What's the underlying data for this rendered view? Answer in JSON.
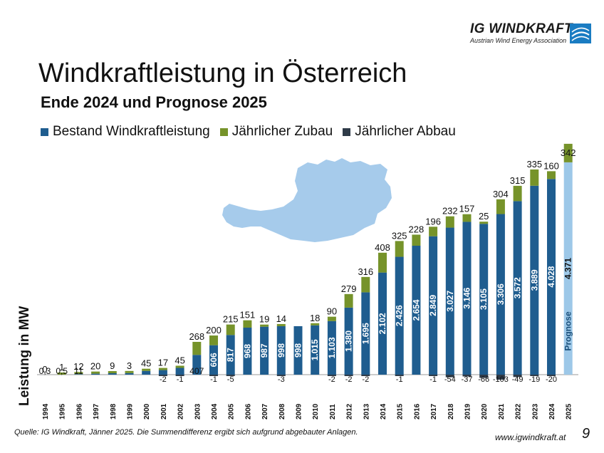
{
  "logo": {
    "title": "IG WINDKRAFT",
    "subtitle": "Austrian Wind Energy Association"
  },
  "title": "Windkraftleistung in Österreich",
  "subtitle": "Ende 2024 und Prognose 2025",
  "source": "Quelle: IG Windkraft, Jänner 2025. Die Summendifferenz ergibt sich aufgrund abgebauter Anlagen.",
  "website": "www.igwindkraft.at",
  "page_number": "9",
  "colors": {
    "bestand": "#1f5d8f",
    "zubau": "#76932a",
    "abbau": "#2f3b48",
    "prognose": "#9dc8e8",
    "map": "#a6cbeb"
  },
  "chart_data": {
    "type": "bar",
    "stacked": true,
    "title": "",
    "xlabel": "",
    "ylabel": "Leistung in MW",
    "legend_position": "top",
    "categories": [
      "1994",
      "1995",
      "1996",
      "1997",
      "1998",
      "1999",
      "2000",
      "2001",
      "2002",
      "2003",
      "2004",
      "2005",
      "2006",
      "2007",
      "2008",
      "2009",
      "2010",
      "2011",
      "2012",
      "2013",
      "2014",
      "2015",
      "2016",
      "2017",
      "2018",
      "2019",
      "2020",
      "2021",
      "2022",
      "2023",
      "2024",
      "2025"
    ],
    "series": [
      {
        "name": "Bestand Windkraftleistung",
        "values": [
          0.3,
          0.5,
          11,
          20,
          29,
          32,
          77,
          94,
          139,
          407,
          606,
          817,
          968,
          987,
          998,
          998,
          1015,
          1103,
          1380,
          1695,
          2102,
          2426,
          2654,
          2849,
          3027,
          3146,
          3105,
          3306,
          3572,
          3889,
          4028,
          4371
        ],
        "labels": [
          "0,3",
          "0,5",
          "11",
          "",
          "",
          "",
          "",
          "",
          "",
          "407",
          "606",
          "817",
          "968",
          "987",
          "998",
          "998",
          "1.015",
          "1.103",
          "1.380",
          "1.695",
          "2.102",
          "2.426",
          "2.654",
          "2.849",
          "3.027",
          "3.146",
          "3.105",
          "3.306",
          "3.572",
          "3.889",
          "4.028",
          "4.371"
        ]
      },
      {
        "name": "Jährlicher Zubau",
        "values": [
          0,
          1,
          12,
          20,
          9,
          3,
          45,
          17,
          45,
          268,
          200,
          215,
          151,
          19,
          14,
          0,
          18,
          90,
          279,
          316,
          408,
          325,
          228,
          196,
          232,
          157,
          25,
          304,
          315,
          335,
          160,
          342
        ],
        "labels": [
          "0",
          "1",
          "12",
          "20",
          "9",
          "3",
          "45",
          "17",
          "45",
          "268",
          "200",
          "215",
          "151",
          "19",
          "14",
          "",
          "18",
          "90",
          "279",
          "316",
          "408",
          "325",
          "228",
          "196",
          "232",
          "157",
          "25",
          "304",
          "315",
          "335",
          "160",
          "342"
        ]
      },
      {
        "name": "Jährlicher Abbau",
        "values": [
          0,
          0,
          0,
          0,
          0,
          0,
          0,
          -2,
          -1,
          0,
          -1,
          -5,
          0,
          0,
          -3,
          0,
          0,
          -2,
          -2,
          -2,
          0,
          -1,
          0,
          -1,
          -54,
          -37,
          -66,
          -103,
          -49,
          -19,
          -20,
          0
        ],
        "labels": [
          "",
          "",
          "",
          "",
          "",
          "",
          "",
          "-2",
          "-1",
          "",
          "-1",
          "-5",
          "",
          "",
          "-3",
          "",
          "",
          "-2",
          "-2",
          "-2",
          "",
          "-1",
          "",
          "-1",
          "-54",
          "-37",
          "-66",
          "-103",
          "-49",
          "-19",
          "-20",
          ""
        ]
      }
    ],
    "prognose_label": "Prognose",
    "prognose_category": "2025"
  }
}
